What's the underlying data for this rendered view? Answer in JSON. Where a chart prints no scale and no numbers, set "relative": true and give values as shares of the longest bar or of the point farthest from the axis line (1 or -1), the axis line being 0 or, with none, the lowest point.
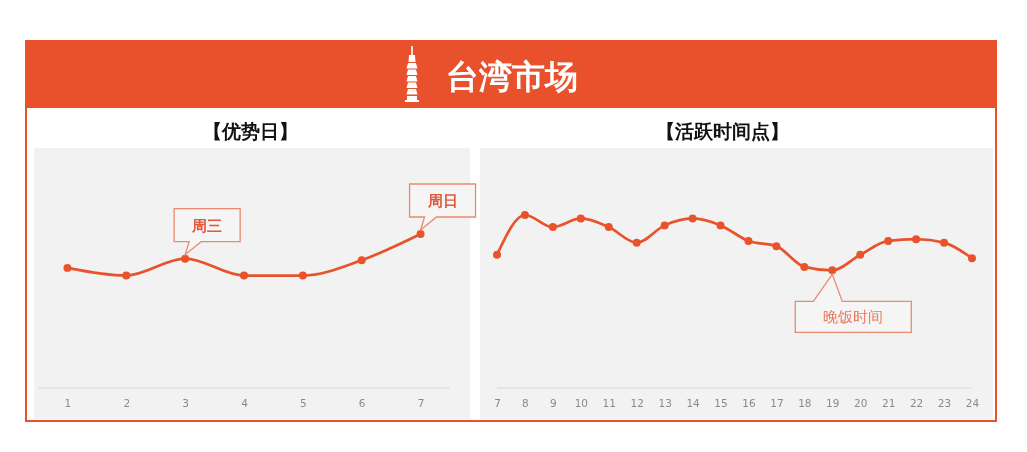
{
  "chart_data": [
    {
      "type": "other",
      "title": "台湾市场"
    },
    {
      "type": "line",
      "title": "【优势日】",
      "x": [
        1,
        2,
        3,
        4,
        5,
        6,
        7
      ],
      "values": [
        0.78,
        0.73,
        0.84,
        0.73,
        0.73,
        0.83,
        1
      ],
      "xlim": [
        0.5,
        7.5
      ],
      "xticks": [
        1,
        2,
        3,
        4,
        5,
        6,
        7
      ],
      "color": "#e8532c",
      "relative": true,
      "marker": "circle",
      "line_style": "solid",
      "annotations": [
        {
          "text": "周三",
          "x": 3,
          "y": 0.84
        },
        {
          "text": "周日",
          "x": 7,
          "y": 1
        }
      ]
    },
    {
      "type": "line",
      "title": "【活跃时间点】",
      "x": [
        7,
        8,
        9,
        10,
        11,
        12,
        13,
        14,
        15,
        16,
        17,
        18,
        19,
        20,
        21,
        22,
        23,
        24
      ],
      "values": [
        0.77,
        1,
        0.93,
        0.98,
        0.93,
        0.84,
        0.94,
        0.98,
        0.94,
        0.85,
        0.82,
        0.7,
        0.68,
        0.77,
        0.85,
        0.86,
        0.84,
        0.75
      ],
      "xlim": [
        7,
        24
      ],
      "xticks": [
        7,
        8,
        9,
        10,
        11,
        12,
        13,
        14,
        15,
        16,
        17,
        18,
        19,
        20,
        21,
        22,
        23,
        24
      ],
      "color": "#e8532c",
      "relative": true,
      "marker": "circle",
      "line_style": "solid",
      "annotations": [
        {
          "text": "晚饭时间",
          "x": 19,
          "y": 0.68
        }
      ]
    }
  ]
}
